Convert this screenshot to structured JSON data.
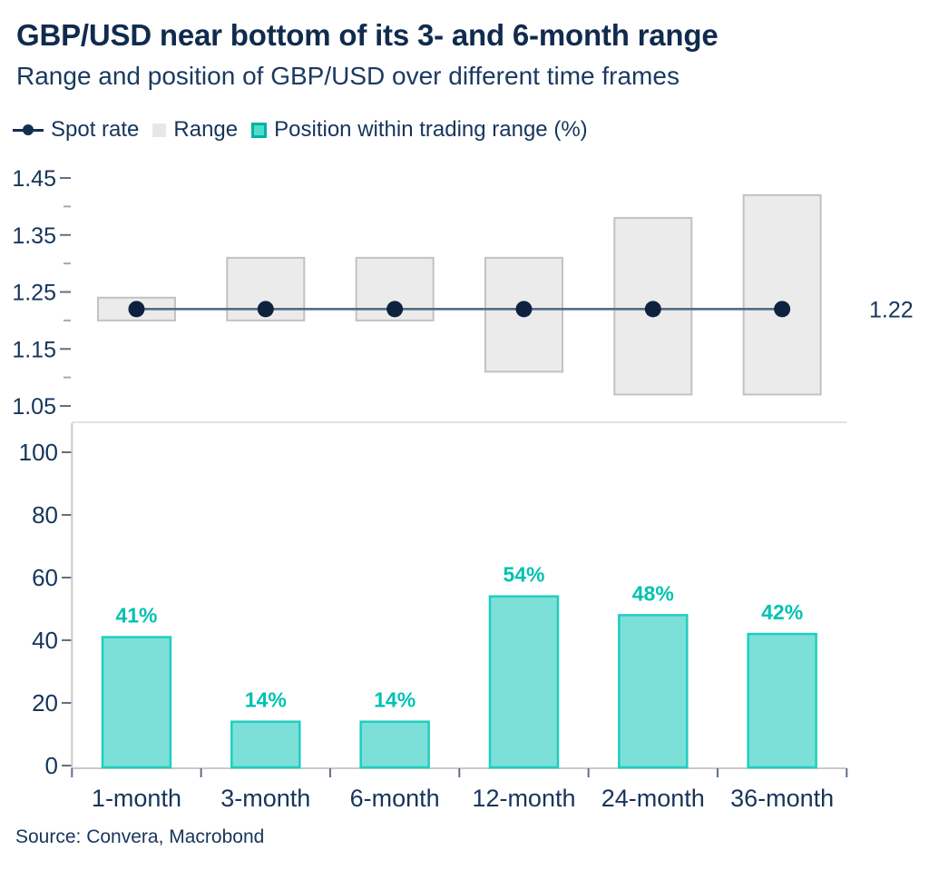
{
  "header": {
    "title": "GBP/USD near bottom of its 3- and 6-month range",
    "subtitle": "Range and position of GBP/USD over different time frames"
  },
  "legend": {
    "spot_label": "Spot rate",
    "range_label": "Range",
    "position_label": "Position within trading range (%)"
  },
  "source": "Source: Convera, Macrobond",
  "colors": {
    "navy_title": "#102B4E",
    "navy_text": "#16355B",
    "teal_fill": "#7CE0D8",
    "teal_stroke": "#1FCEBF",
    "teal_label": "#00C2B2",
    "range_fill": "#EBEBEB",
    "range_stroke": "#C2C2C2",
    "spot_line": "#546B84",
    "spot_dot": "#0E2240",
    "axis_line": "#C9C9C9",
    "tick_major": "#5F7186",
    "tick_minor": "#A6AAAE",
    "separator": "#D9D9D9"
  },
  "chart_data": [
    {
      "type": "range",
      "panel": "top",
      "categories": [
        "1-month",
        "3-month",
        "6-month",
        "12-month",
        "24-month",
        "36-month"
      ],
      "series": [
        {
          "name": "Range",
          "type": "box",
          "ranges": [
            [
              1.2,
              1.24
            ],
            [
              1.2,
              1.31
            ],
            [
              1.2,
              1.31
            ],
            [
              1.11,
              1.31
            ],
            [
              1.07,
              1.38
            ],
            [
              1.07,
              1.42
            ]
          ]
        },
        {
          "name": "Spot rate",
          "type": "line",
          "value": 1.22,
          "label": "1.22"
        }
      ],
      "ylim": [
        1.02,
        1.47
      ],
      "yticks": [
        1.05,
        1.15,
        1.25,
        1.35,
        1.45
      ],
      "yticks_minor": [
        1.1,
        1.2,
        1.3,
        1.4
      ],
      "grid": false,
      "legend_position": "top-left"
    },
    {
      "type": "bar",
      "panel": "bottom",
      "name": "Position within trading range (%)",
      "categories": [
        "1-month",
        "3-month",
        "6-month",
        "12-month",
        "24-month",
        "36-month"
      ],
      "values": [
        41,
        14,
        14,
        54,
        48,
        42
      ],
      "bar_labels": [
        "41%",
        "14%",
        "14%",
        "54%",
        "48%",
        "42%"
      ],
      "ylim": [
        0,
        108
      ],
      "yticks": [
        0,
        20,
        40,
        60,
        80,
        100
      ],
      "grid": false
    }
  ]
}
